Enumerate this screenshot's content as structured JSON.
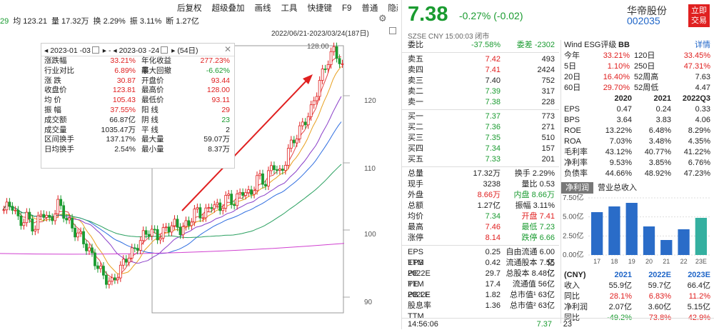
{
  "topbar": {
    "metrics": [
      {
        "label": "29",
        "cls": "green"
      },
      {
        "label": "均 123.21",
        "cls": ""
      },
      {
        "label": "量 17.32万",
        "cls": ""
      },
      {
        "label": "换 2.29%",
        "cls": ""
      },
      {
        "label": "振 3.11%",
        "cls": ""
      },
      {
        "label": "断 1.27亿",
        "cls": ""
      }
    ],
    "menu": [
      "后复权",
      "超级叠加",
      "画线",
      "工具",
      "快捷键",
      "F9",
      "普通",
      "隐藏"
    ],
    "date_range": "2022/06/21-2023/03/24(187日)"
  },
  "stats": {
    "start": "2023-01 -03",
    "end": "2023-03 -24",
    "days": "(54日)",
    "rows": [
      {
        "l1": "涨跌幅",
        "v1": "33.21%",
        "c1": "red",
        "l2": "年化收益率",
        "v2": "277.23%",
        "c2": "red"
      },
      {
        "l1": "行业对比",
        "v1": "6.89%",
        "c1": "red",
        "l2": "最大回撤",
        "v2": "-6.62%",
        "c2": "green",
        "q": true
      },
      {
        "l1": "涨 跌",
        "v1": "30.87",
        "c1": "red",
        "l2": "开盘价",
        "v2": "93.44",
        "c2": "red"
      },
      {
        "l1": "收盘价",
        "v1": "123.81",
        "c1": "red",
        "l2": "最高价",
        "v2": "128.00",
        "c2": "red"
      },
      {
        "l1": "均 价",
        "v1": "105.43",
        "c1": "red",
        "l2": "最低价",
        "v2": "93.11",
        "c2": "red"
      },
      {
        "l1": "振 幅",
        "v1": "37.55%",
        "c1": "red",
        "l2": "阳 线",
        "v2": "29",
        "c2": "red"
      },
      {
        "l1": "成交额",
        "v1": "66.87亿",
        "c1": "",
        "l2": "阴 线",
        "v2": "23",
        "c2": "green"
      },
      {
        "l1": "成交量",
        "v1": "1035.47万",
        "c1": "",
        "l2": "平 线",
        "v2": "2",
        "c2": ""
      },
      {
        "l1": "区间换手",
        "v1": "137.17%",
        "c1": "",
        "l2": "最大量",
        "v2": "59.07万",
        "c2": ""
      },
      {
        "l1": "日均换手",
        "v1": "2.54%",
        "c1": "",
        "l2": "最小量",
        "v2": "8.37万",
        "c2": ""
      }
    ]
  },
  "chart": {
    "ylabels": [
      "120",
      "110",
      "100",
      "90"
    ],
    "high_label": "128.00"
  },
  "quote": {
    "price": "7.38",
    "change": "-0.27% (-0.02)",
    "sub": "SZSE  CNY  15:00:03  闭市",
    "name": "华帝股份",
    "code": "002035",
    "trade": [
      "立即",
      "交易"
    ]
  },
  "orderbook": [
    {
      "a": "委比",
      "b": "-37.58%",
      "bc": "green",
      "c": "委差 -2302",
      "cc": "green"
    },
    {
      "sep": true
    },
    {
      "a": "卖五",
      "b": "7.42",
      "bc": "red",
      "c": "493"
    },
    {
      "a": "卖四",
      "b": "7.41",
      "bc": "red",
      "c": "2424"
    },
    {
      "a": "卖三",
      "b": "7.40",
      "bc": "",
      "c": "752"
    },
    {
      "a": "卖二",
      "b": "7.39",
      "bc": "green",
      "c": "317"
    },
    {
      "a": "卖一",
      "b": "7.38",
      "bc": "green",
      "c": "228"
    },
    {
      "sep": true
    },
    {
      "a": "买一",
      "b": "7.37",
      "bc": "green",
      "c": "773"
    },
    {
      "a": "买二",
      "b": "7.36",
      "bc": "green",
      "c": "271"
    },
    {
      "a": "买三",
      "b": "7.35",
      "bc": "green",
      "c": "510"
    },
    {
      "a": "买四",
      "b": "7.34",
      "bc": "green",
      "c": "157"
    },
    {
      "a": "买五",
      "b": "7.33",
      "bc": "green",
      "c": "201"
    },
    {
      "sep": true
    },
    {
      "a": "总量",
      "b": "17.32万",
      "bc": "",
      "c": "换手  2.29%"
    },
    {
      "a": "现手",
      "b": "3238",
      "bc": "",
      "c": "量比  0.53"
    },
    {
      "a": "外盘",
      "b": "8.66万",
      "bc": "red",
      "c": "内盘  8.66万",
      "cc": "green"
    },
    {
      "a": "总额",
      "b": "1.27亿",
      "bc": "",
      "c": "振幅  3.11%"
    },
    {
      "a": "均价",
      "b": "7.34",
      "bc": "green",
      "c": "开盘  7.41",
      "cc": "red"
    },
    {
      "a": "最高",
      "b": "7.46",
      "bc": "red",
      "c": "最低  7.23",
      "cc": "green"
    },
    {
      "a": "涨停",
      "b": "8.14",
      "bc": "red",
      "c": "跌停  6.66",
      "cc": "green"
    },
    {
      "sep": true
    },
    {
      "a": "EPS TTM",
      "b": "0.25",
      "bc": "",
      "c": "自由流通  6.00亿"
    },
    {
      "a": "EPS 2022E",
      "b": "0.42",
      "bc": "",
      "c": "流通股本  7.55亿"
    },
    {
      "a": "PE TTM",
      "b": "29.7",
      "bc": "",
      "c": "总股本  8.48亿"
    },
    {
      "a": "PE 2022E",
      "b": "17.4",
      "bc": "",
      "c": "流通值  56亿"
    },
    {
      "a": "PB LF",
      "b": "1.82",
      "bc": "",
      "c": "总市值¹  63亿"
    },
    {
      "a": "股息率 TTM",
      "b": "1.36",
      "bc": "",
      "c": "总市值²  63亿"
    }
  ],
  "wind": {
    "header": [
      "Wind ESG评级",
      "BB",
      "详情"
    ],
    "rows": [
      {
        "l": "今年",
        "v": "33.21%",
        "l2": "120日",
        "v2": "33.45%"
      },
      {
        "l": "5日",
        "v": "1.10%",
        "l2": "250日",
        "v2": "47.31%"
      },
      {
        "l": "20日",
        "v": "16.40%",
        "l2": "52周高",
        "v2": "7.63",
        "c2": ""
      },
      {
        "l": "60日",
        "v": "29.70%",
        "l2": "52周低",
        "v2": "4.47",
        "c2": ""
      }
    ],
    "fin_head": [
      "",
      "2020",
      "2021",
      "2022Q3"
    ],
    "fin": [
      [
        "EPS",
        "0.47",
        "0.24",
        "0.33"
      ],
      [
        "BPS",
        "3.64",
        "3.83",
        "4.06"
      ],
      [
        "ROE",
        "13.22%",
        "6.48%",
        "8.29%"
      ],
      [
        "ROA",
        "7.03%",
        "3.48%",
        "4.35%"
      ],
      [
        "毛利率",
        "43.12%",
        "40.77%",
        "41.22%"
      ],
      [
        "净利率",
        "9.53%",
        "3.85%",
        "6.76%"
      ],
      [
        "负债率",
        "44.66%",
        "48.92%",
        "47.23%"
      ]
    ],
    "tabs": [
      "净利润",
      "营业总收入"
    ],
    "forecast_head": [
      "(CNY)",
      "2021",
      "2022E",
      "2023E"
    ],
    "forecast": [
      [
        "收入",
        "55.9亿",
        "59.7亿",
        "66.4亿"
      ],
      [
        "同比",
        "28.1%",
        "6.83%",
        "11.2%"
      ],
      [
        "净利润",
        "2.07亿",
        "3.60亿",
        "5.15亿"
      ],
      [
        "同比",
        "-49.2%",
        "73.8%",
        "42.9%"
      ]
    ]
  },
  "chart_data": {
    "type": "bar",
    "categories": [
      "17",
      "18",
      "19",
      "20",
      "21",
      "22",
      "23E"
    ],
    "values": [
      6.0,
      6.8,
      7.3,
      4.0,
      2.1,
      3.6,
      5.2
    ],
    "ylabels": [
      "7.50亿",
      "5.00亿",
      "2.50亿",
      "0.00亿"
    ],
    "ylim": [
      0,
      8
    ]
  },
  "bottom": [
    "14:56:06",
    "7.37",
    "23"
  ]
}
